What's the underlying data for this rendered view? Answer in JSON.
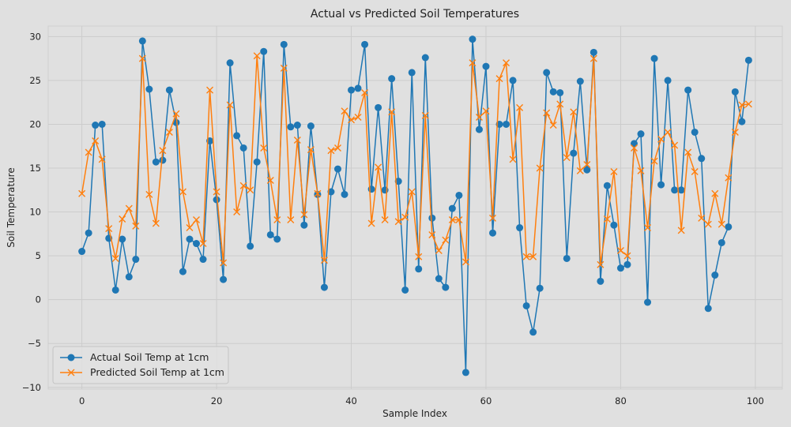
{
  "chart_data": {
    "type": "line",
    "title": "Actual vs Predicted Soil Temperatures",
    "xlabel": "Sample Index",
    "ylabel": "Soil Temperature",
    "xlim": [
      -5,
      104
    ],
    "ylim": [
      -10.2,
      31.2
    ],
    "xticks": [
      0,
      20,
      40,
      60,
      80,
      100
    ],
    "yticks": [
      -10,
      -5,
      0,
      5,
      10,
      15,
      20,
      25,
      30
    ],
    "grid": true,
    "legend_position": "lower-left",
    "x": [
      0,
      1,
      2,
      3,
      4,
      5,
      6,
      7,
      8,
      9,
      10,
      11,
      12,
      13,
      14,
      15,
      16,
      17,
      18,
      19,
      20,
      21,
      22,
      23,
      24,
      25,
      26,
      27,
      28,
      29,
      30,
      31,
      32,
      33,
      34,
      35,
      36,
      37,
      38,
      39,
      40,
      41,
      42,
      43,
      44,
      45,
      46,
      47,
      48,
      49,
      50,
      51,
      52,
      53,
      54,
      55,
      56,
      57,
      58,
      59,
      60,
      61,
      62,
      63,
      64,
      65,
      66,
      67,
      68,
      69,
      70,
      71,
      72,
      73,
      74,
      75,
      76,
      77,
      78,
      79,
      80,
      81,
      82,
      83,
      84,
      85,
      86,
      87,
      88,
      89,
      90,
      91,
      92,
      93,
      94,
      95,
      96,
      97,
      98,
      99
    ],
    "series": [
      {
        "name": "Actual Soil Temp at 1cm",
        "color": "#1f77b4",
        "marker": "circle",
        "values": [
          5.5,
          7.6,
          19.9,
          20.0,
          7.0,
          1.1,
          6.9,
          2.6,
          4.6,
          29.5,
          24.0,
          15.7,
          15.9,
          23.9,
          20.2,
          3.2,
          6.9,
          6.4,
          4.6,
          18.1,
          11.4,
          2.3,
          27.0,
          18.7,
          17.3,
          6.1,
          15.7,
          28.3,
          7.4,
          6.9,
          29.1,
          19.7,
          19.9,
          8.5,
          19.8,
          12.0,
          1.4,
          12.3,
          14.9,
          12.0,
          23.9,
          24.1,
          29.1,
          12.6,
          21.9,
          12.5,
          25.2,
          13.5,
          1.1,
          25.9,
          3.5,
          27.6,
          9.3,
          2.4,
          1.4,
          10.4,
          11.9,
          -8.3,
          29.7,
          19.4,
          26.6,
          7.6,
          20.0,
          20.0,
          25.0,
          8.2,
          -0.7,
          -3.7,
          1.3,
          25.9,
          23.7,
          23.6,
          4.7,
          16.7,
          24.9,
          14.8,
          28.2,
          2.1,
          13.0,
          8.5,
          3.6,
          4.0,
          17.8,
          18.9,
          -0.3,
          27.5,
          13.1,
          25.0,
          12.5,
          12.5,
          23.9,
          19.1,
          16.1,
          -1.0,
          2.8,
          6.5,
          8.3,
          23.7,
          20.3,
          27.3
        ]
      },
      {
        "name": "Predicted Soil Temp at 1cm",
        "color": "#ff7f0e",
        "marker": "x",
        "values": [
          12.1,
          16.8,
          18.1,
          16.0,
          8.1,
          4.7,
          9.2,
          10.4,
          8.4,
          27.5,
          12.0,
          8.7,
          17.0,
          19.1,
          21.2,
          12.3,
          8.2,
          9.1,
          6.4,
          23.9,
          12.3,
          4.2,
          22.2,
          10.0,
          13.0,
          12.5,
          27.8,
          17.3,
          13.6,
          9.1,
          26.4,
          9.1,
          18.2,
          9.7,
          17.1,
          12.1,
          4.5,
          17.0,
          17.3,
          21.5,
          20.5,
          20.8,
          23.6,
          8.7,
          15.1,
          9.1,
          21.4,
          8.9,
          9.4,
          12.3,
          4.9,
          21.0,
          7.4,
          5.6,
          6.8,
          9.1,
          9.1,
          4.3,
          27.0,
          20.8,
          21.5,
          9.3,
          25.2,
          27.0,
          16.0,
          21.9,
          4.9,
          4.9,
          15.0,
          21.3,
          19.9,
          22.3,
          16.2,
          21.4,
          14.7,
          15.4,
          27.5,
          4.0,
          9.2,
          14.6,
          5.6,
          5.0,
          17.3,
          14.7,
          8.2,
          15.8,
          18.3,
          19.1,
          17.6,
          7.9,
          16.8,
          14.6,
          9.3,
          8.6,
          12.1,
          8.6,
          13.9,
          19.1,
          22.2,
          22.3
        ]
      }
    ]
  }
}
